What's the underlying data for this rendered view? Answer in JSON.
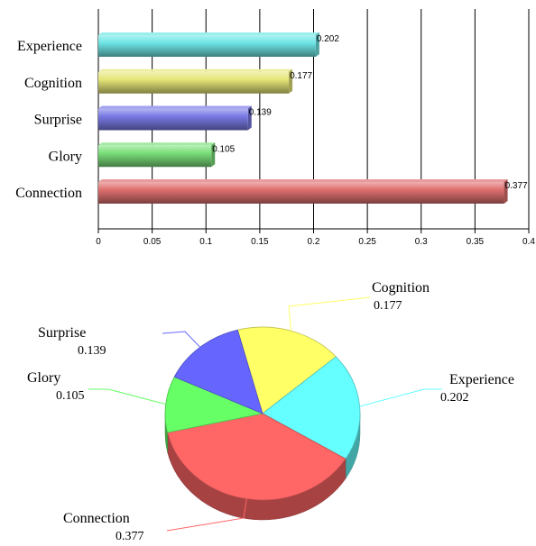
{
  "chart_data": [
    {
      "type": "bar",
      "orientation": "horizontal",
      "categories": [
        "Experience",
        "Cognition",
        "Surprise",
        "Glory",
        "Connection"
      ],
      "values": [
        0.202,
        0.177,
        0.139,
        0.105,
        0.377
      ],
      "value_labels": [
        "0.202",
        "0.177",
        "0.139",
        "0.105",
        "0.377"
      ],
      "colors": [
        "#6ee6e6",
        "#e6e678",
        "#7a7ae6",
        "#7ae07a",
        "#e07070"
      ],
      "xlim": [
        0,
        0.4
      ],
      "x_ticks": [
        "0",
        "0.05",
        "0.1",
        "0.15",
        "0.2",
        "0.25",
        "0.3",
        "0.35",
        "0.4"
      ],
      "grid": "vertical",
      "title": "",
      "xlabel": "",
      "ylabel": ""
    },
    {
      "type": "pie",
      "style": "3d",
      "slices": [
        {
          "label": "Cognition",
          "value": 0.177,
          "value_label": "0.177",
          "color": "#ffff66"
        },
        {
          "label": "Experience",
          "value": 0.202,
          "value_label": "0.202",
          "color": "#66ffff"
        },
        {
          "label": "Connection",
          "value": 0.377,
          "value_label": "0.377",
          "color": "#ff6666"
        },
        {
          "label": "Glory",
          "value": 0.105,
          "value_label": "0.105",
          "color": "#66ff66"
        },
        {
          "label": "Surprise",
          "value": 0.139,
          "value_label": "0.139",
          "color": "#6666ff"
        }
      ],
      "title": ""
    }
  ]
}
